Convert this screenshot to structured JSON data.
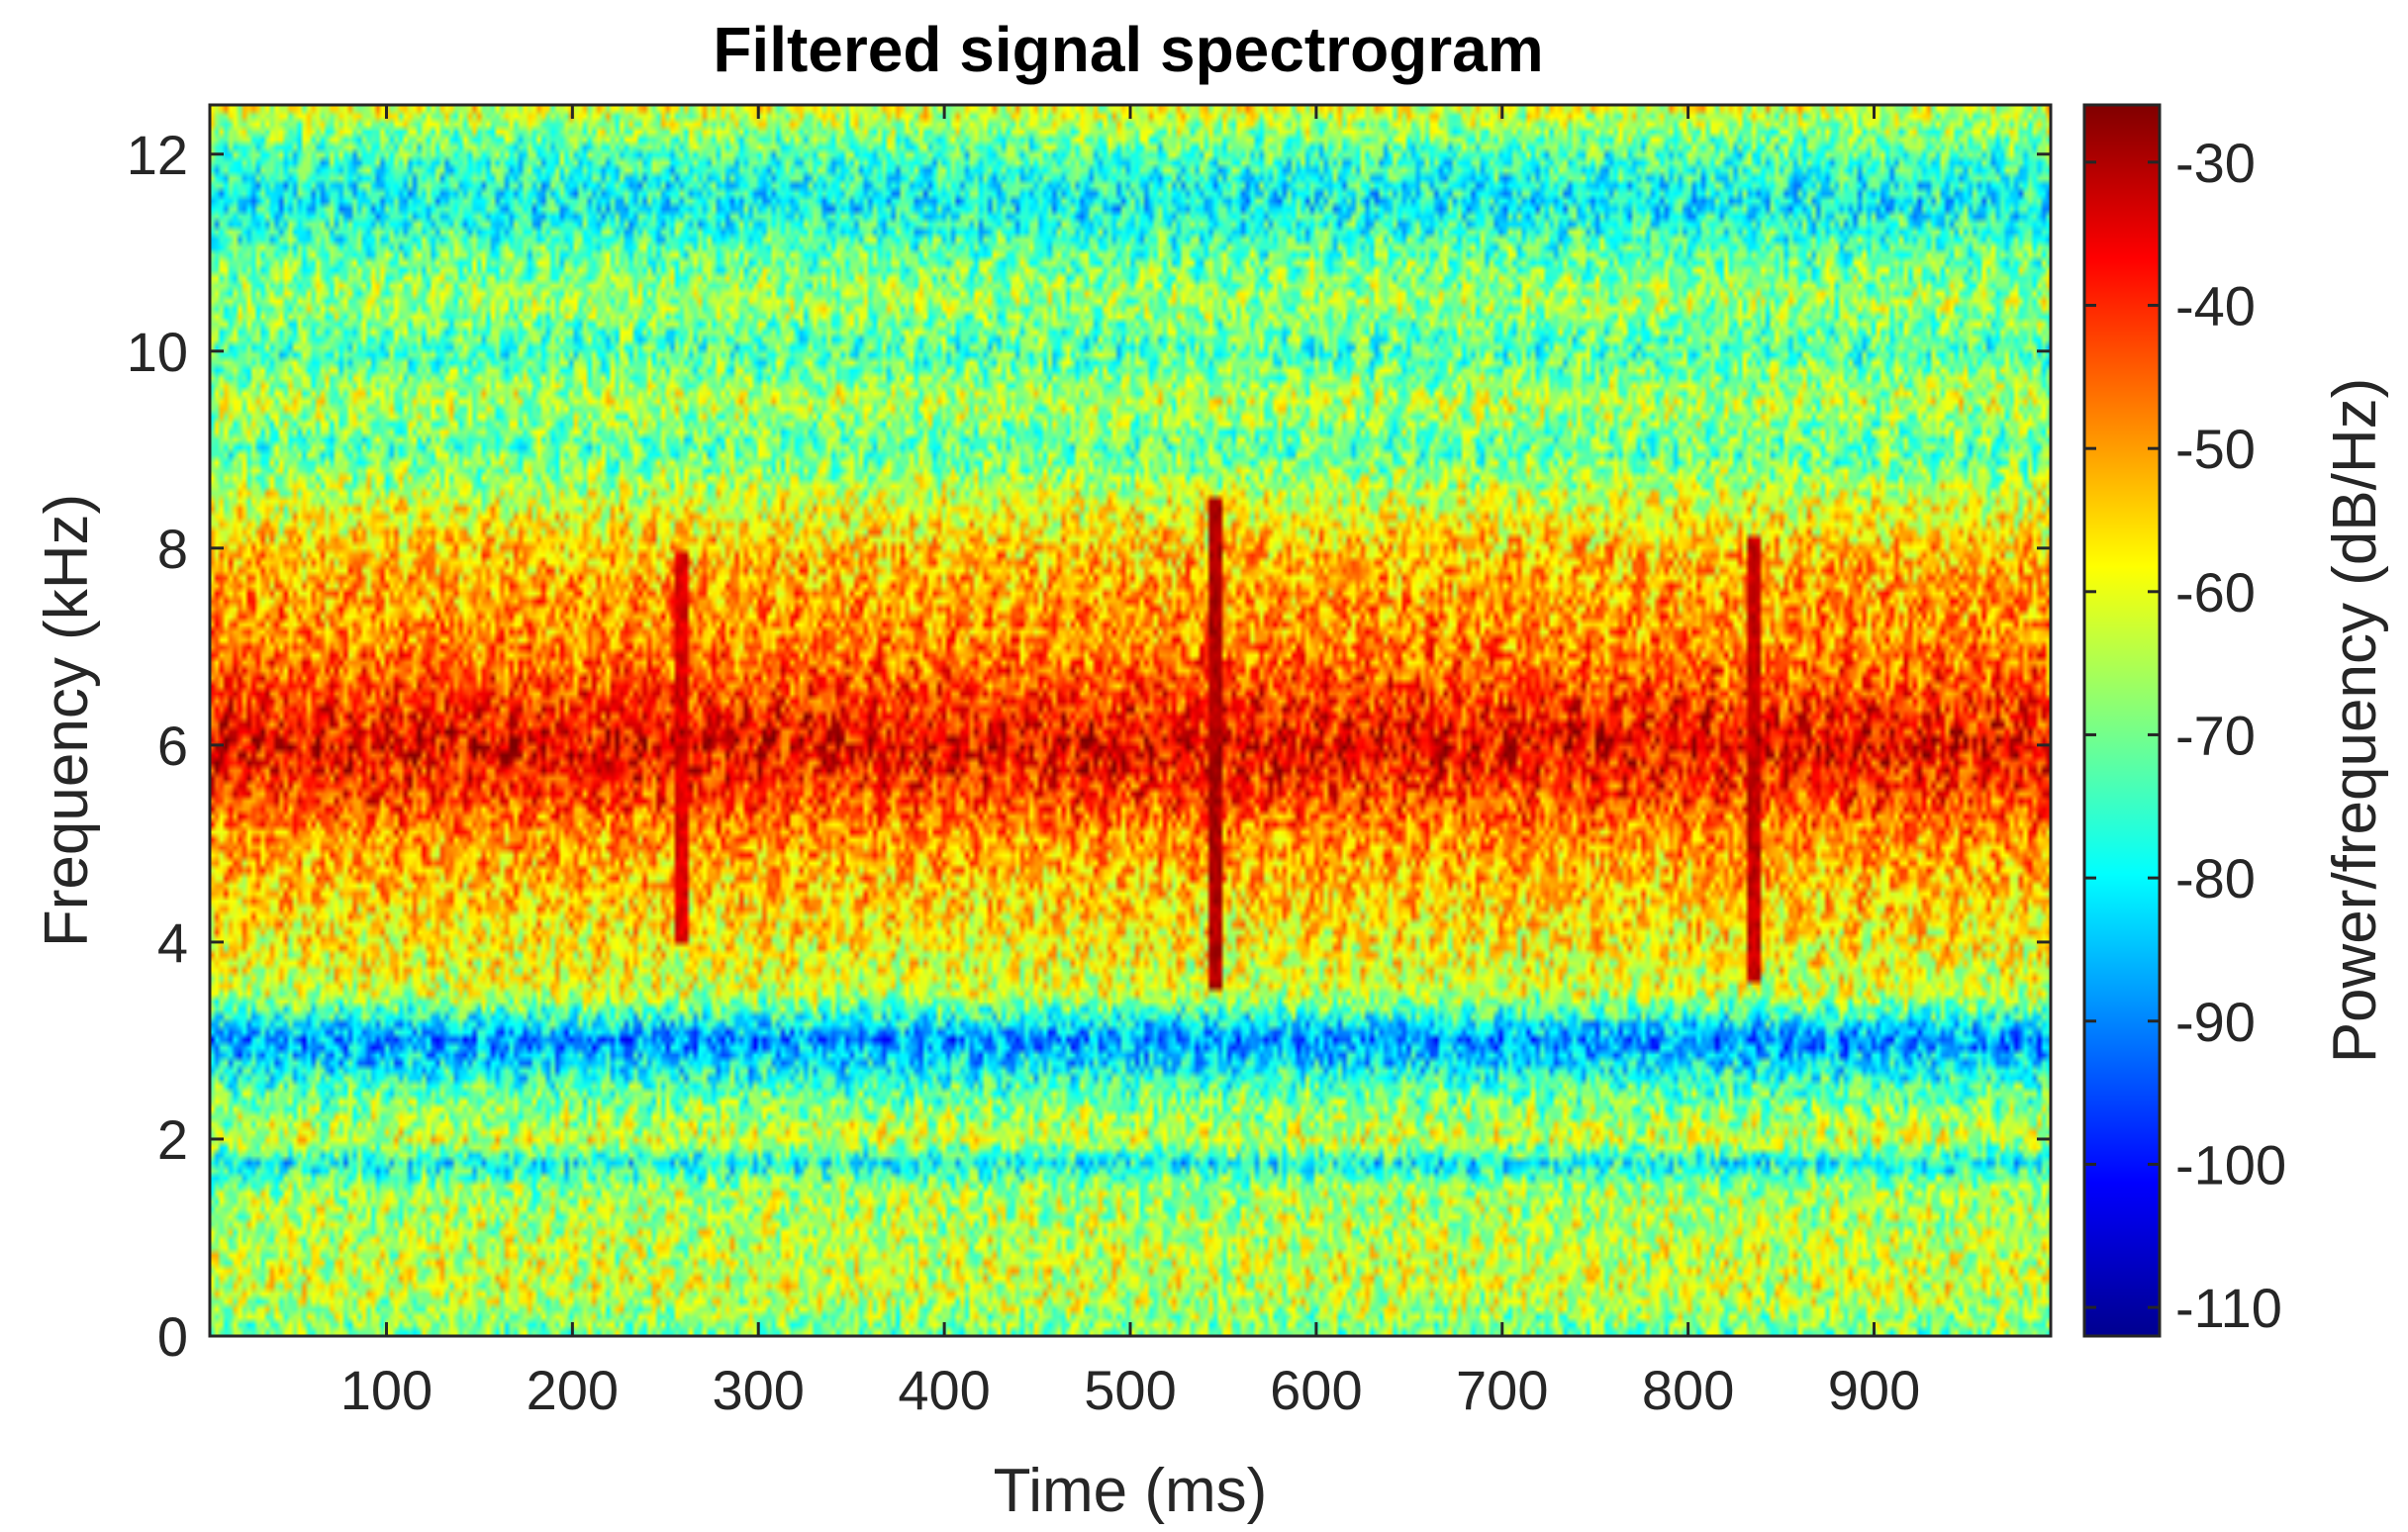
{
  "chart_data": {
    "type": "heatmap",
    "title": "Filtered signal spectrogram",
    "xlabel": "Time (ms)",
    "ylabel": "Frequency (kHz)",
    "colorbar_label": "Power/frequency (dB/Hz)",
    "colormap": "jet",
    "xlim": [
      5,
      995
    ],
    "ylim": [
      0,
      12.5
    ],
    "clim": [
      -112,
      -26
    ],
    "x_ticks": [
      100,
      200,
      300,
      400,
      500,
      600,
      700,
      800,
      900
    ],
    "x_tick_labels": [
      "100",
      "200",
      "300",
      "400",
      "500",
      "600",
      "700",
      "800",
      "900"
    ],
    "y_ticks": [
      0,
      2,
      4,
      6,
      8,
      10,
      12
    ],
    "y_tick_labels": [
      "0",
      "2",
      "4",
      "6",
      "8",
      "10",
      "12"
    ],
    "colorbar_ticks": [
      -110,
      -100,
      -90,
      -80,
      -70,
      -60,
      -50,
      -40,
      -30
    ],
    "colorbar_tick_labels": [
      "-110",
      "-100",
      "-90",
      "-80",
      "-70",
      "-60",
      "-50",
      "-40",
      "-30"
    ],
    "grid": false,
    "frequency_profile": {
      "frequency_kHz": [
        0,
        0.5,
        1.0,
        1.5,
        1.75,
        2.0,
        2.5,
        3.0,
        3.5,
        4.0,
        4.5,
        5.0,
        5.5,
        6.0,
        6.5,
        7.0,
        7.5,
        8.0,
        8.5,
        9.0,
        9.5,
        10.0,
        10.5,
        11.0,
        11.5,
        12.0,
        12.5
      ],
      "mean_power_dB_Hz": [
        -70,
        -62,
        -64,
        -66,
        -80,
        -62,
        -72,
        -90,
        -62,
        -58,
        -54,
        -50,
        -42,
        -36,
        -42,
        -48,
        -50,
        -54,
        -62,
        -72,
        -64,
        -74,
        -66,
        -72,
        -80,
        -74,
        -60
      ]
    },
    "transients": [
      {
        "time_ms": 258,
        "freq_range_kHz": [
          4.0,
          8.0
        ],
        "power_dB_Hz": -34
      },
      {
        "time_ms": 545,
        "freq_range_kHz": [
          3.5,
          8.5
        ],
        "power_dB_Hz": -30
      },
      {
        "time_ms": 835,
        "freq_range_kHz": [
          3.6,
          8.1
        ],
        "power_dB_Hz": -32
      }
    ]
  }
}
